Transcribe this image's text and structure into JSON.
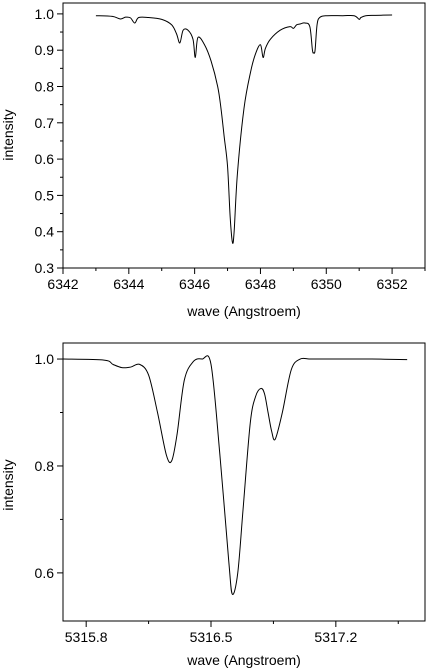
{
  "chart_data": [
    {
      "type": "line",
      "xlabel": "wave (Angstroem)",
      "ylabel": "intensity",
      "xlim": [
        6342,
        6353
      ],
      "ylim": [
        0.3,
        1.03
      ],
      "xticks": [
        6342,
        6344,
        6346,
        6348,
        6350,
        6352
      ],
      "yticks": [
        0.3,
        0.4,
        0.5,
        0.6,
        0.7,
        0.8,
        0.9,
        1.0
      ],
      "xtick_labels": [
        "6342",
        "6344",
        "6346",
        "6348",
        "6350",
        "6352"
      ],
      "ytick_labels": [
        "0.3",
        "0.4",
        "0.5",
        "0.6",
        "0.7",
        "0.8",
        "0.9",
        "1.0"
      ],
      "grid": false,
      "series": [
        {
          "x": [
            6343.0,
            6343.5,
            6343.75,
            6343.9,
            6344.05,
            6344.18,
            6344.3,
            6344.6,
            6345.0,
            6345.3,
            6345.45,
            6345.55,
            6345.65,
            6345.8,
            6345.95,
            6346.02,
            6346.1,
            6346.3,
            6346.5,
            6346.7,
            6346.8,
            6346.9,
            6347.0,
            6347.08,
            6347.15,
            6347.2,
            6347.3,
            6347.5,
            6347.7,
            6347.85,
            6348.0,
            6348.08,
            6348.15,
            6348.3,
            6348.6,
            6348.9,
            6349.0,
            6349.1,
            6349.2,
            6349.35,
            6349.5,
            6349.58,
            6349.62,
            6349.66,
            6349.72,
            6349.8,
            6350.0,
            6350.5,
            6350.85,
            6351.0,
            6351.05,
            6351.2,
            6351.5,
            6352.0
          ],
          "y": [
            0.995,
            0.993,
            0.986,
            0.991,
            0.989,
            0.975,
            0.99,
            0.99,
            0.985,
            0.97,
            0.945,
            0.92,
            0.955,
            0.955,
            0.93,
            0.88,
            0.935,
            0.915,
            0.87,
            0.8,
            0.74,
            0.66,
            0.58,
            0.44,
            0.37,
            0.4,
            0.56,
            0.74,
            0.84,
            0.89,
            0.915,
            0.88,
            0.905,
            0.93,
            0.955,
            0.965,
            0.96,
            0.97,
            0.972,
            0.975,
            0.965,
            0.9,
            0.893,
            0.9,
            0.97,
            0.99,
            0.995,
            0.995,
            0.995,
            0.985,
            0.99,
            0.995,
            0.996,
            0.997
          ]
        }
      ]
    },
    {
      "type": "line",
      "xlabel": "wave (Angstroem)",
      "ylabel": "intensity",
      "xlim": [
        5315.67,
        5317.7
      ],
      "ylim": [
        0.51,
        1.03
      ],
      "xticks": [
        5315.8,
        5316.5,
        5317.2
      ],
      "yticks": [
        0.6,
        0.8,
        1.0
      ],
      "xtick_labels": [
        "5315.8",
        "5316.5",
        "5317.2"
      ],
      "ytick_labels": [
        "0.6",
        "0.8",
        "1.0"
      ],
      "grid": false,
      "series": [
        {
          "x": [
            5315.67,
            5315.9,
            5315.95,
            5316.0,
            5316.05,
            5316.1,
            5316.15,
            5316.2,
            5316.25,
            5316.28,
            5316.31,
            5316.35,
            5316.4,
            5316.45,
            5316.5,
            5316.55,
            5316.6,
            5316.62,
            5316.65,
            5316.68,
            5316.72,
            5316.75,
            5316.78,
            5316.8,
            5316.82,
            5316.84,
            5316.86,
            5316.9,
            5316.95,
            5317.0,
            5317.05,
            5317.1,
            5317.2,
            5317.4,
            5317.6
          ],
          "y": [
            1.0,
            0.998,
            0.99,
            0.984,
            0.985,
            0.99,
            0.97,
            0.9,
            0.82,
            0.81,
            0.86,
            0.96,
            0.995,
            1.0,
            0.99,
            0.82,
            0.62,
            0.56,
            0.6,
            0.72,
            0.88,
            0.93,
            0.945,
            0.935,
            0.9,
            0.865,
            0.85,
            0.9,
            0.98,
            1.0,
            1.0,
            1.0,
            1.0,
            1.0,
            0.999
          ]
        }
      ]
    }
  ]
}
